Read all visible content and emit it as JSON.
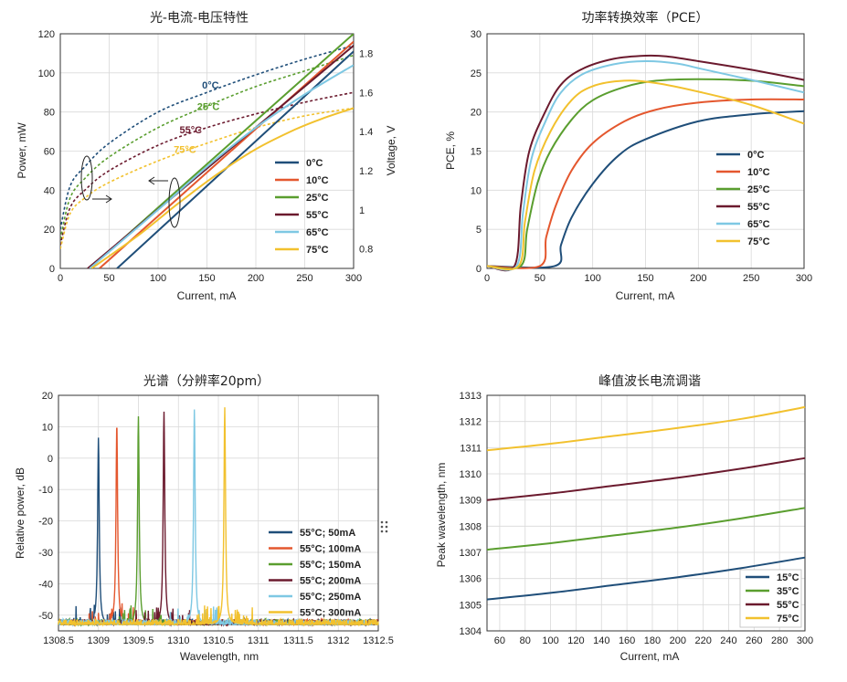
{
  "colors": {
    "c0": "#1f4e79",
    "c10": "#e4572e",
    "c25": "#5a9e2f",
    "c55": "#6b1a2e",
    "c65": "#7ec8e3",
    "c75": "#f2c12e"
  },
  "chart_data": [
    {
      "id": "liv",
      "type": "line",
      "title": "光-电流-电压特性",
      "xlabel": "Current, mA",
      "ylabel": "Power, mW",
      "y2label": "Voltage, V",
      "xlim": [
        0,
        300
      ],
      "ylim": [
        0,
        120
      ],
      "y2lim": [
        0.7,
        1.9
      ],
      "xticks": [
        "0",
        "50",
        "100",
        "150",
        "200",
        "250",
        "300"
      ],
      "yticks": [
        "0",
        "20",
        "40",
        "60",
        "80",
        "100",
        "120"
      ],
      "y2ticks": [
        "0.8",
        "1",
        "1.2",
        "1.4",
        "1.6",
        "1.8"
      ],
      "grid": true,
      "legend_position": "center-right",
      "power_series": [
        {
          "name": "0°C",
          "color_key": "c0",
          "x": [
            58,
            300
          ],
          "y": [
            0,
            111
          ]
        },
        {
          "name": "10°C",
          "color_key": "c10",
          "x": [
            40,
            300
          ],
          "y": [
            0,
            116
          ]
        },
        {
          "name": "25°C",
          "color_key": "c25",
          "x": [
            30,
            300
          ],
          "y": [
            0,
            120
          ]
        },
        {
          "name": "55°C",
          "color_key": "c55",
          "x": [
            28,
            300
          ],
          "y": [
            0,
            114
          ]
        },
        {
          "name": "65°C",
          "color_key": "c65",
          "x": [
            30,
            100,
            150,
            200,
            250,
            300
          ],
          "y": [
            0,
            30,
            52,
            72,
            89,
            104
          ]
        },
        {
          "name": "75°C",
          "color_key": "c75",
          "x": [
            32,
            80,
            120,
            160,
            200,
            240,
            270,
            300
          ],
          "y": [
            0,
            17,
            33,
            48,
            61,
            71,
            77,
            82
          ]
        }
      ],
      "voltage_series": [
        {
          "name": "0°C",
          "color_key": "c0",
          "x": [
            0,
            10,
            25,
            50,
            100,
            150,
            200,
            250,
            300
          ],
          "y": [
            0.9,
            1.12,
            1.22,
            1.34,
            1.5,
            1.6,
            1.69,
            1.77,
            1.84
          ]
        },
        {
          "name": "25°C",
          "color_key": "c25",
          "x": [
            0,
            10,
            25,
            50,
            100,
            150,
            200,
            250,
            300
          ],
          "y": [
            0.85,
            1.06,
            1.16,
            1.27,
            1.42,
            1.53,
            1.63,
            1.71,
            1.79
          ]
        },
        {
          "name": "55°C",
          "color_key": "c55",
          "x": [
            0,
            10,
            25,
            50,
            100,
            150,
            200,
            250,
            300
          ],
          "y": [
            0.82,
            1.01,
            1.1,
            1.2,
            1.33,
            1.42,
            1.49,
            1.55,
            1.6
          ]
        },
        {
          "name": "75°C",
          "color_key": "c75",
          "x": [
            0,
            10,
            25,
            50,
            100,
            150,
            200,
            250,
            300
          ],
          "y": [
            0.8,
            0.98,
            1.06,
            1.14,
            1.25,
            1.34,
            1.42,
            1.48,
            1.52
          ]
        }
      ],
      "annotations": [
        {
          "text": "0°C",
          "x": 145,
          "y": 92,
          "color_key": "c0"
        },
        {
          "text": "25°C",
          "x": 140,
          "y": 81,
          "color_key": "c25"
        },
        {
          "text": "55°C",
          "x": 122,
          "y": 69,
          "color_key": "c55"
        },
        {
          "text": "75°C",
          "x": 116,
          "y": 59,
          "color_key": "c75"
        }
      ]
    },
    {
      "id": "pce",
      "type": "line",
      "title": "功率转换效率（PCE）",
      "xlabel": "Current, mA",
      "ylabel": "PCE, %",
      "xlim": [
        0,
        300
      ],
      "ylim": [
        0,
        30
      ],
      "xticks": [
        "0",
        "50",
        "100",
        "150",
        "200",
        "250",
        "300"
      ],
      "yticks": [
        "0",
        "5",
        "10",
        "15",
        "20",
        "25",
        "30"
      ],
      "grid": true,
      "legend_position": "bottom-center",
      "series": [
        {
          "name": "0°C",
          "color_key": "c0",
          "x": [
            0,
            64,
            70,
            80,
            100,
            125,
            150,
            200,
            250,
            300
          ],
          "y": [
            0.3,
            0.3,
            3,
            6.5,
            10.8,
            14.5,
            16.5,
            18.8,
            19.7,
            20.1
          ]
        },
        {
          "name": "10°C",
          "color_key": "c10",
          "x": [
            0,
            50,
            56,
            65,
            80,
            100,
            130,
            160,
            200,
            250,
            300
          ],
          "y": [
            0.3,
            0.3,
            4,
            8,
            12.5,
            16,
            18.8,
            20.3,
            21.2,
            21.6,
            21.6
          ]
        },
        {
          "name": "25°C",
          "color_key": "c25",
          "x": [
            0,
            32,
            38,
            48,
            60,
            80,
            100,
            130,
            160,
            200,
            250,
            300
          ],
          "y": [
            0.3,
            0.3,
            5,
            11,
            15,
            19,
            21.5,
            23.2,
            24,
            24.2,
            24,
            23.3
          ]
        },
        {
          "name": "55°C",
          "color_key": "c55",
          "x": [
            0,
            26,
            32,
            40,
            55,
            70,
            90,
            120,
            150,
            170,
            200,
            250,
            300
          ],
          "y": [
            0.3,
            0.3,
            8,
            15,
            20,
            23.5,
            25.5,
            26.8,
            27.2,
            27.1,
            26.5,
            25.4,
            24.1
          ]
        },
        {
          "name": "65°C",
          "color_key": "c65",
          "x": [
            0,
            28,
            34,
            42,
            56,
            70,
            90,
            120,
            150,
            180,
            200,
            250,
            300
          ],
          "y": [
            0.3,
            0.3,
            7,
            14,
            19,
            22.5,
            24.8,
            26.1,
            26.5,
            26.2,
            25.6,
            24.1,
            22.5
          ]
        },
        {
          "name": "75°C",
          "color_key": "c75",
          "x": [
            0,
            30,
            36,
            45,
            60,
            80,
            100,
            130,
            160,
            200,
            250,
            300
          ],
          "y": [
            0.3,
            0.3,
            6,
            12.5,
            17.5,
            21.5,
            23.3,
            24,
            23.7,
            22.6,
            20.9,
            18.5
          ]
        }
      ]
    },
    {
      "id": "spectrum",
      "type": "line",
      "title": "光谱（分辨率20pm）",
      "xlabel": "Wavelength, nm",
      "ylabel": "Relative power, dB",
      "xlim": [
        1308.5,
        1312.5
      ],
      "ylim": [
        -55,
        20
      ],
      "xticks": [
        "1308.5",
        "1309",
        "1309.5",
        "1310",
        "1310.5",
        "1311",
        "1311.5",
        "1312",
        "1312.5"
      ],
      "yticks": [
        "-50",
        "-40",
        "-30",
        "-20",
        "-10",
        "0",
        "10",
        "20"
      ],
      "grid": true,
      "legend_position": "bottom-right",
      "noise_floor": -53,
      "series": [
        {
          "name": "55°C; 50mA",
          "color_key": "c0",
          "peak_x": 1309.0,
          "peak_y": 6.5
        },
        {
          "name": "55°C; 100mA",
          "color_key": "c10",
          "peak_x": 1309.23,
          "peak_y": 11.2
        },
        {
          "name": "55°C; 150mA",
          "color_key": "c25",
          "peak_x": 1309.5,
          "peak_y": 13.3
        },
        {
          "name": "55°C; 200mA",
          "color_key": "c55",
          "peak_x": 1309.82,
          "peak_y": 14.8
        },
        {
          "name": "55°C; 250mA",
          "color_key": "c65",
          "peak_x": 1310.2,
          "peak_y": 15.5
        },
        {
          "name": "55°C; 300mA",
          "color_key": "c75",
          "peak_x": 1310.58,
          "peak_y": 16.2
        }
      ]
    },
    {
      "id": "tuning",
      "type": "line",
      "title": "峰值波长电流调谐",
      "xlabel": "Current, mA",
      "ylabel": "Peak wavelength, nm",
      "xlim": [
        50,
        300
      ],
      "ylim": [
        1304,
        1313
      ],
      "xticks": [
        "60",
        "80",
        "100",
        "120",
        "140",
        "160",
        "180",
        "200",
        "220",
        "240",
        "260",
        "280",
        "300"
      ],
      "yticks": [
        "1304",
        "1305",
        "1306",
        "1307",
        "1308",
        "1309",
        "1310",
        "1311",
        "1312",
        "1313"
      ],
      "grid": true,
      "legend_position": "bottom-right",
      "series": [
        {
          "name": "15°C",
          "color_key": "c0",
          "x": [
            50,
            100,
            150,
            200,
            250,
            300
          ],
          "y": [
            1305.2,
            1305.45,
            1305.75,
            1306.05,
            1306.4,
            1306.8
          ]
        },
        {
          "name": "35°C",
          "color_key": "c25",
          "x": [
            50,
            100,
            150,
            200,
            250,
            300
          ],
          "y": [
            1307.1,
            1307.35,
            1307.65,
            1307.95,
            1308.3,
            1308.7
          ]
        },
        {
          "name": "55°C",
          "color_key": "c55",
          "x": [
            50,
            100,
            150,
            200,
            250,
            300
          ],
          "y": [
            1309.0,
            1309.25,
            1309.55,
            1309.85,
            1310.2,
            1310.6
          ]
        },
        {
          "name": "75°C",
          "color_key": "c75",
          "x": [
            50,
            100,
            150,
            200,
            250,
            300
          ],
          "y": [
            1310.9,
            1311.15,
            1311.45,
            1311.75,
            1312.1,
            1312.55
          ]
        }
      ]
    }
  ]
}
